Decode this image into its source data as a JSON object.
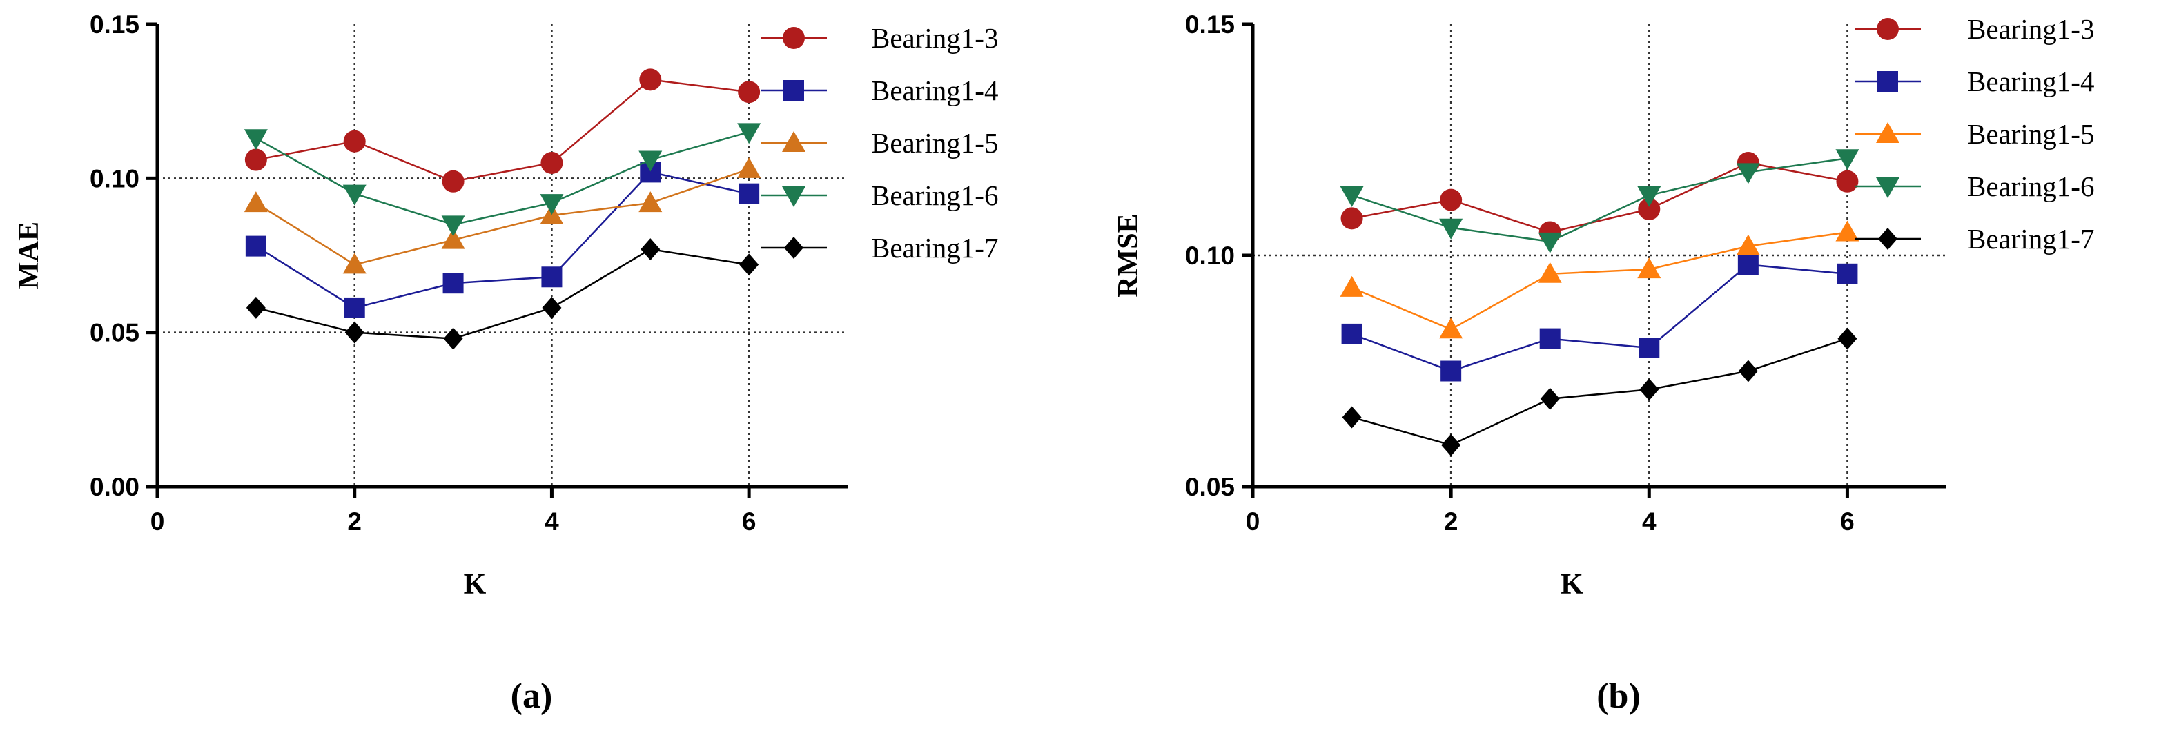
{
  "chart_data": [
    {
      "type": "line",
      "panel_label": "(a)",
      "xlabel": "K",
      "ylabel": "MAE",
      "xlim": [
        0,
        7
      ],
      "ylim": [
        0,
        0.15
      ],
      "x_ticks": [
        0,
        2,
        4,
        6
      ],
      "x_tick_labels": [
        "0",
        "2",
        "4",
        "6"
      ],
      "y_ticks": [
        0,
        0.05,
        0.1,
        0.15
      ],
      "y_tick_labels": [
        "0.00",
        "0.05",
        "0.10",
        "0.15"
      ],
      "grid_x": [
        2,
        4,
        6
      ],
      "grid_y": [
        0.05,
        0.1
      ],
      "legend_position": "right",
      "x": [
        1,
        2,
        3,
        4,
        5,
        6
      ],
      "series": [
        {
          "name": "Bearing1-3",
          "marker": "circle",
          "color": "#b01c1c",
          "values": [
            0.106,
            0.112,
            0.099,
            0.105,
            0.132,
            0.128
          ]
        },
        {
          "name": "Bearing1-4",
          "marker": "square",
          "color": "#1c1c96",
          "values": [
            0.078,
            0.058,
            0.066,
            0.068,
            0.102,
            0.095
          ]
        },
        {
          "name": "Bearing1-5",
          "marker": "triangle-up",
          "color": "#d2741c",
          "values": [
            0.092,
            0.072,
            0.08,
            0.088,
            0.092,
            0.103
          ]
        },
        {
          "name": "Bearing1-6",
          "marker": "triangle-down",
          "color": "#1e7a50",
          "values": [
            0.113,
            0.095,
            0.085,
            0.092,
            0.106,
            0.115
          ]
        },
        {
          "name": "Bearing1-7",
          "marker": "diamond",
          "color": "#000000",
          "values": [
            0.058,
            0.05,
            0.048,
            0.058,
            0.077,
            0.072
          ]
        }
      ]
    },
    {
      "type": "line",
      "panel_label": "(b)",
      "xlabel": "K",
      "ylabel": "RMSE",
      "xlim": [
        0,
        7
      ],
      "ylim": [
        0.05,
        0.15
      ],
      "x_ticks": [
        0,
        2,
        4,
        6
      ],
      "x_tick_labels": [
        "0",
        "2",
        "4",
        "6"
      ],
      "y_ticks": [
        0.05,
        0.1,
        0.15
      ],
      "y_tick_labels": [
        "0.05",
        "0.10",
        "0.15"
      ],
      "grid_x": [
        2,
        4,
        6
      ],
      "grid_y": [
        0.1
      ],
      "legend_position": "right",
      "x": [
        1,
        2,
        3,
        4,
        5,
        6
      ],
      "series": [
        {
          "name": "Bearing1-3",
          "marker": "circle",
          "color": "#b01c1c",
          "values": [
            0.108,
            0.112,
            0.105,
            0.11,
            0.12,
            0.116
          ]
        },
        {
          "name": "Bearing1-4",
          "marker": "square",
          "color": "#1c1c96",
          "values": [
            0.083,
            0.075,
            0.082,
            0.08,
            0.098,
            0.096
          ]
        },
        {
          "name": "Bearing1-5",
          "marker": "triangle-up",
          "color": "#ff7f0e",
          "values": [
            0.093,
            0.084,
            0.096,
            0.097,
            0.102,
            0.105
          ]
        },
        {
          "name": "Bearing1-6",
          "marker": "triangle-down",
          "color": "#1e7a50",
          "values": [
            0.113,
            0.106,
            0.103,
            0.113,
            0.118,
            0.121
          ]
        },
        {
          "name": "Bearing1-7",
          "marker": "diamond",
          "color": "#000000",
          "values": [
            0.065,
            0.059,
            0.069,
            0.071,
            0.075,
            0.082
          ]
        }
      ]
    }
  ]
}
